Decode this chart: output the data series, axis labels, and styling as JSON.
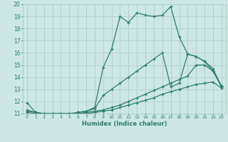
{
  "title": "",
  "xlabel": "Humidex (Indice chaleur)",
  "ylabel": "",
  "bg_color": "#cde8e4",
  "line_color": "#2d7d6e",
  "grid_color": "#b0cdc9",
  "xlim": [
    -0.5,
    23.5
  ],
  "ylim": [
    11,
    20
  ],
  "xticks": [
    0,
    1,
    2,
    3,
    4,
    5,
    6,
    7,
    8,
    9,
    10,
    11,
    12,
    13,
    14,
    15,
    16,
    17,
    18,
    19,
    20,
    21,
    22,
    23
  ],
  "yticks": [
    11,
    12,
    13,
    14,
    15,
    16,
    17,
    18,
    19,
    20
  ],
  "series": [
    {
      "x": [
        0,
        1,
        2,
        3,
        4,
        5,
        6,
        7,
        8,
        9,
        10,
        11,
        12,
        13,
        14,
        15,
        16,
        17,
        18,
        19,
        20,
        21,
        22,
        23
      ],
      "y": [
        11.9,
        11.1,
        10.8,
        10.9,
        10.9,
        10.9,
        11.1,
        11.2,
        11.5,
        14.8,
        16.3,
        19.0,
        18.5,
        19.3,
        19.1,
        19.0,
        19.1,
        19.8,
        17.3,
        15.9,
        15.7,
        15.3,
        14.5,
        13.2
      ]
    },
    {
      "x": [
        0,
        1,
        2,
        3,
        4,
        5,
        6,
        7,
        8,
        9,
        10,
        11,
        12,
        13,
        14,
        15,
        16,
        17,
        18,
        19,
        20,
        21,
        22,
        23
      ],
      "y": [
        11.3,
        11.1,
        11.0,
        11.0,
        11.0,
        11.0,
        11.1,
        11.2,
        11.4,
        12.5,
        13.0,
        13.5,
        14.0,
        14.5,
        15.0,
        15.5,
        16.0,
        13.2,
        13.5,
        15.9,
        15.7,
        15.3,
        14.7,
        13.2
      ]
    },
    {
      "x": [
        0,
        1,
        2,
        3,
        4,
        5,
        6,
        7,
        8,
        9,
        10,
        11,
        12,
        13,
        14,
        15,
        16,
        17,
        18,
        19,
        20,
        21,
        22,
        23
      ],
      "y": [
        11.2,
        11.1,
        11.0,
        11.0,
        11.0,
        11.0,
        11.0,
        11.1,
        11.2,
        11.3,
        11.5,
        11.7,
        12.0,
        12.3,
        12.6,
        12.9,
        13.2,
        13.5,
        13.8,
        14.1,
        15.0,
        15.0,
        14.5,
        13.3
      ]
    },
    {
      "x": [
        0,
        1,
        2,
        3,
        4,
        5,
        6,
        7,
        8,
        9,
        10,
        11,
        12,
        13,
        14,
        15,
        16,
        17,
        18,
        19,
        20,
        21,
        22,
        23
      ],
      "y": [
        11.1,
        11.0,
        11.0,
        11.0,
        11.0,
        11.0,
        11.0,
        11.0,
        11.1,
        11.2,
        11.3,
        11.5,
        11.7,
        11.9,
        12.1,
        12.3,
        12.6,
        12.8,
        13.0,
        13.2,
        13.4,
        13.5,
        13.6,
        13.1
      ]
    }
  ]
}
